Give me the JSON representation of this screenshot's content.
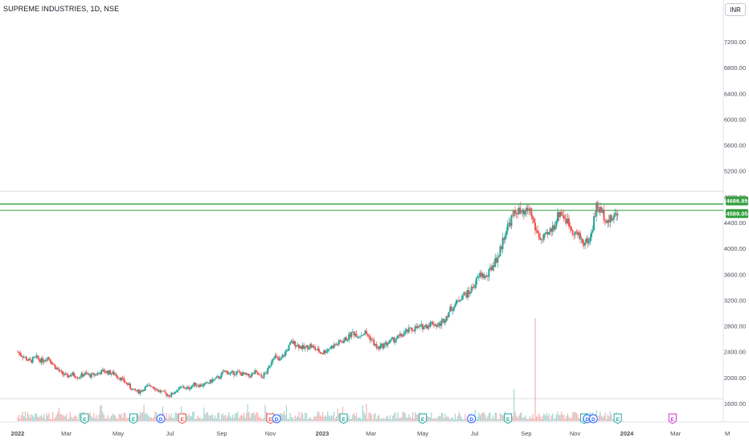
{
  "header": {
    "symbol_title": "SUPREME INDUSTRIES, 1D, NSE",
    "currency_button": "INR"
  },
  "price_labels": {
    "upper": "4686.85",
    "lower": "4589.05"
  },
  "colors": {
    "up": "#26a69a",
    "down": "#ef5350",
    "level": "#2e9d3a",
    "axis_text": "#4a4e59"
  },
  "events": [
    {
      "kind": "E",
      "color": "#26a69a",
      "date": 2022.22
    },
    {
      "kind": "E",
      "color": "#26a69a",
      "date": 2022.38
    },
    {
      "kind": "D",
      "color": "#2962ff",
      "date": 2022.47
    },
    {
      "kind": "E",
      "color": "#ef5350",
      "date": 2022.54
    },
    {
      "kind": "E",
      "color": "#ef5350",
      "date": 2022.83
    },
    {
      "kind": "D",
      "color": "#2962ff",
      "date": 2022.85
    },
    {
      "kind": "E",
      "color": "#26a69a",
      "date": 2023.07
    },
    {
      "kind": "E",
      "color": "#26a69a",
      "date": 2023.33
    },
    {
      "kind": "D",
      "color": "#2962ff",
      "date": 2023.49
    },
    {
      "kind": "E",
      "color": "#26a69a",
      "date": 2023.61
    },
    {
      "kind": "E",
      "color": "#26a69a",
      "date": 2023.86
    },
    {
      "kind": "D",
      "color": "#2962ff",
      "date": 2023.87
    },
    {
      "kind": "D",
      "color": "#2962ff",
      "date": 2023.89
    },
    {
      "kind": "E",
      "color": "#26a69a",
      "date": 2023.97
    },
    {
      "kind": "E",
      "color": "#cc33cc",
      "date": 2024.15
    }
  ],
  "chart_data": {
    "type": "candlestick",
    "title": "SUPREME INDUSTRIES, 1D, NSE",
    "x_ticks": [
      {
        "label": "2022",
        "date": 2022.0
      },
      {
        "label": "Mar",
        "date": 2022.16
      },
      {
        "label": "May",
        "date": 2022.33
      },
      {
        "label": "Jul",
        "date": 2022.5
      },
      {
        "label": "Sep",
        "date": 2022.67
      },
      {
        "label": "Nov",
        "date": 2022.83
      },
      {
        "label": "2023",
        "date": 2023.0
      },
      {
        "label": "Mar",
        "date": 2023.16
      },
      {
        "label": "May",
        "date": 2023.33
      },
      {
        "label": "Jul",
        "date": 2023.5
      },
      {
        "label": "Sep",
        "date": 2023.67
      },
      {
        "label": "Nov",
        "date": 2023.83
      },
      {
        "label": "2024",
        "date": 2024.0
      },
      {
        "label": "Mar",
        "date": 2024.16
      },
      {
        "label": "M",
        "date": 2024.33
      }
    ],
    "y_ticks": [
      {
        "label": "1600.00",
        "value": 1600
      },
      {
        "label": "2000.00",
        "value": 2000
      },
      {
        "label": "2400.00",
        "value": 2400
      },
      {
        "label": "2800.00",
        "value": 2800
      },
      {
        "label": "3200.00",
        "value": 3200
      },
      {
        "label": "3600.00",
        "value": 3600
      },
      {
        "label": "4000.00",
        "value": 4000
      },
      {
        "label": "4400.00",
        "value": 4400
      },
      {
        "label": "4800.00",
        "value": 4800
      },
      {
        "label": "5200.00",
        "value": 5200
      },
      {
        "label": "5600.00",
        "value": 5600
      },
      {
        "label": "6000.00",
        "value": 6000
      },
      {
        "label": "6400.00",
        "value": 6400
      },
      {
        "label": "6800.00",
        "value": 6800
      },
      {
        "label": "7200.00",
        "value": 7200
      }
    ],
    "x_range": [
      2021.98,
      2024.35
    ],
    "y_range": [
      1500,
      7600
    ],
    "levels": [
      {
        "value": 4686.85,
        "label": "4686.85",
        "style": "horizontal"
      },
      {
        "value": 4589.05,
        "label": "4589.05",
        "style": "horizontal"
      }
    ],
    "price_path": [
      [
        2022.0,
        2400
      ],
      [
        2022.02,
        2320
      ],
      [
        2022.04,
        2250
      ],
      [
        2022.06,
        2310
      ],
      [
        2022.08,
        2260
      ],
      [
        2022.1,
        2320
      ],
      [
        2022.12,
        2180
      ],
      [
        2022.14,
        2080
      ],
      [
        2022.16,
        2020
      ],
      [
        2022.18,
        2050
      ],
      [
        2022.2,
        2010
      ],
      [
        2022.22,
        2060
      ],
      [
        2022.24,
        2030
      ],
      [
        2022.26,
        2060
      ],
      [
        2022.28,
        2100
      ],
      [
        2022.3,
        2080
      ],
      [
        2022.32,
        2050
      ],
      [
        2022.34,
        1980
      ],
      [
        2022.36,
        1900
      ],
      [
        2022.38,
        1800
      ],
      [
        2022.4,
        1780
      ],
      [
        2022.42,
        1850
      ],
      [
        2022.44,
        1880
      ],
      [
        2022.46,
        1800
      ],
      [
        2022.48,
        1760
      ],
      [
        2022.5,
        1720
      ],
      [
        2022.52,
        1800
      ],
      [
        2022.54,
        1850
      ],
      [
        2022.56,
        1830
      ],
      [
        2022.58,
        1900
      ],
      [
        2022.6,
        1880
      ],
      [
        2022.62,
        1900
      ],
      [
        2022.64,
        1960
      ],
      [
        2022.66,
        2000
      ],
      [
        2022.68,
        2100
      ],
      [
        2022.7,
        2060
      ],
      [
        2022.72,
        2080
      ],
      [
        2022.74,
        2050
      ],
      [
        2022.76,
        2020
      ],
      [
        2022.78,
        2080
      ],
      [
        2022.8,
        2000
      ],
      [
        2022.82,
        2100
      ],
      [
        2022.84,
        2350
      ],
      [
        2022.86,
        2250
      ],
      [
        2022.88,
        2400
      ],
      [
        2022.9,
        2550
      ],
      [
        2022.92,
        2500
      ],
      [
        2022.94,
        2450
      ],
      [
        2022.96,
        2500
      ],
      [
        2022.98,
        2430
      ],
      [
        2023.0,
        2380
      ],
      [
        2023.02,
        2450
      ],
      [
        2023.04,
        2500
      ],
      [
        2023.06,
        2550
      ],
      [
        2023.08,
        2600
      ],
      [
        2023.1,
        2700
      ],
      [
        2023.12,
        2650
      ],
      [
        2023.14,
        2700
      ],
      [
        2023.16,
        2600
      ],
      [
        2023.18,
        2450
      ],
      [
        2023.2,
        2500
      ],
      [
        2023.22,
        2550
      ],
      [
        2023.24,
        2600
      ],
      [
        2023.26,
        2650
      ],
      [
        2023.28,
        2720
      ],
      [
        2023.3,
        2760
      ],
      [
        2023.32,
        2780
      ],
      [
        2023.34,
        2800
      ],
      [
        2023.36,
        2850
      ],
      [
        2023.38,
        2800
      ],
      [
        2023.4,
        2900
      ],
      [
        2023.42,
        3050
      ],
      [
        2023.44,
        3150
      ],
      [
        2023.46,
        3280
      ],
      [
        2023.48,
        3300
      ],
      [
        2023.5,
        3450
      ],
      [
        2023.52,
        3600
      ],
      [
        2023.54,
        3550
      ],
      [
        2023.56,
        3750
      ],
      [
        2023.58,
        3900
      ],
      [
        2023.6,
        4250
      ],
      [
        2023.62,
        4450
      ],
      [
        2023.64,
        4600
      ],
      [
        2023.66,
        4500
      ],
      [
        2023.68,
        4620
      ],
      [
        2023.7,
        4300
      ],
      [
        2023.72,
        4120
      ],
      [
        2023.74,
        4200
      ],
      [
        2023.76,
        4350
      ],
      [
        2023.78,
        4580
      ],
      [
        2023.8,
        4450
      ],
      [
        2023.82,
        4300
      ],
      [
        2023.84,
        4200
      ],
      [
        2023.86,
        4080
      ],
      [
        2023.88,
        4150
      ],
      [
        2023.9,
        4650
      ],
      [
        2023.92,
        4550
      ],
      [
        2023.94,
        4420
      ],
      [
        2023.96,
        4500
      ],
      [
        2023.97,
        4580
      ]
    ]
  }
}
